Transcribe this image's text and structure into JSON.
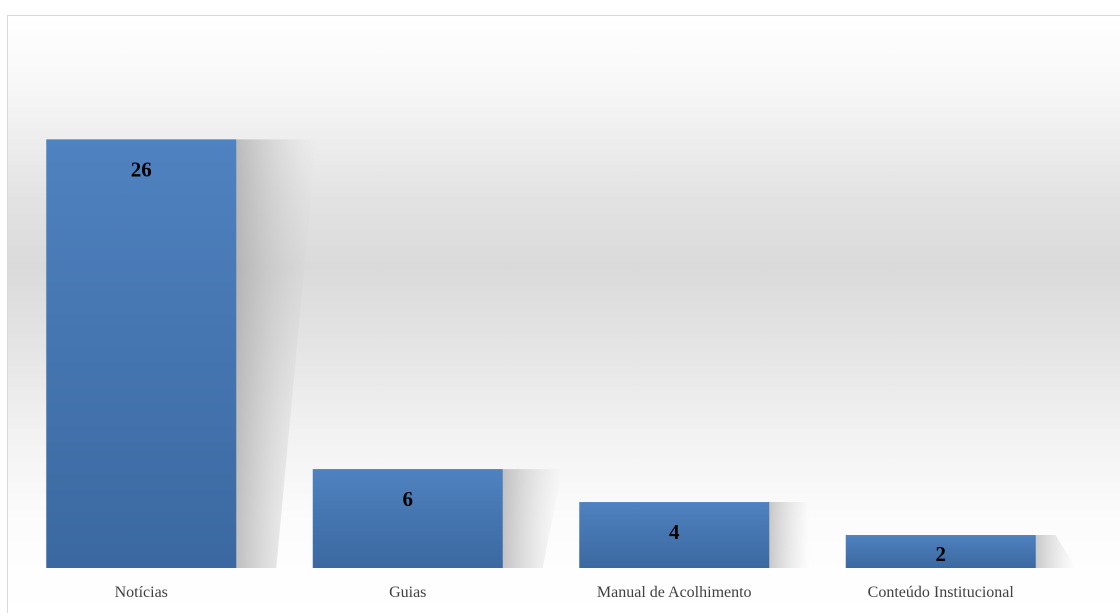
{
  "chart_data": {
    "type": "bar",
    "title": "",
    "xlabel": "",
    "ylabel": "",
    "categories": [
      "Notícias",
      "Guias",
      "Manual de Acolhimento",
      "Conteúdo Institucional"
    ],
    "values": [
      26,
      6,
      4,
      2
    ],
    "data_labels": [
      "26",
      "6",
      "4",
      "2"
    ],
    "ylim": [
      0,
      29.6
    ],
    "grid": false,
    "legend": "none",
    "colors": {
      "bar": "#4f81bd",
      "bar_dark": "#3c6aa1",
      "shadow": "#b5b5b5"
    }
  }
}
